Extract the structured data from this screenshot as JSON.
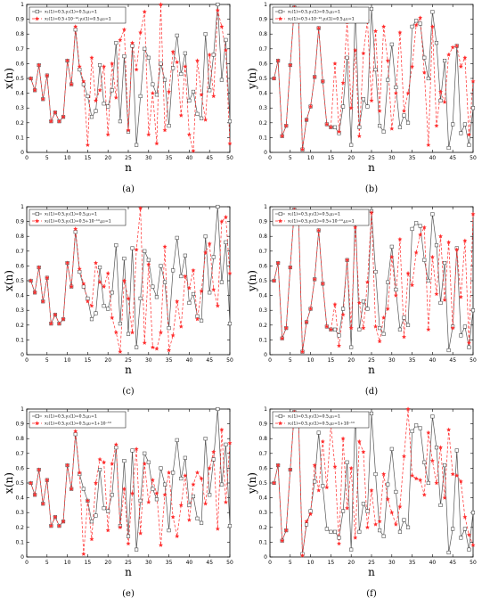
{
  "chart_data": [
    {
      "panel": "(a)",
      "type": "line",
      "xlabel": "n",
      "ylabel": "x(n)",
      "xlim": [
        0,
        50
      ],
      "ylim": [
        0,
        1
      ],
      "xticks": [
        "0",
        "5",
        "10",
        "15",
        "20",
        "25",
        "30",
        "35",
        "40",
        "45",
        "50"
      ],
      "yticks": [
        "0",
        "0.1",
        "0.2",
        "0.3",
        "0.4",
        "0.5",
        "0.6",
        "0.7",
        "0.8",
        "0.9",
        "1"
      ],
      "legend": [
        "x₁(1)=0.5,y₁(1)=0.5,μ₁=1",
        "x₂(1)=0.5+10⁻¹⁴,y₂(1)=0.5,μ₂=1"
      ],
      "x": [
        1,
        2,
        3,
        4,
        5,
        6,
        7,
        8,
        9,
        10,
        11,
        12,
        13,
        14,
        15,
        16,
        17,
        18,
        19,
        20,
        21,
        22,
        23,
        24,
        25,
        26,
        27,
        28,
        29,
        30,
        31,
        32,
        33,
        34,
        35,
        36,
        37,
        38,
        39,
        40,
        41,
        42,
        43,
        44,
        45,
        46,
        47,
        48,
        49,
        50
      ],
      "series": [
        {
          "values": [
            0.5,
            0.42,
            0.59,
            0.36,
            0.52,
            0.21,
            0.27,
            0.21,
            0.24,
            0.62,
            0.46,
            0.83,
            0.56,
            0.46,
            0.38,
            0.24,
            0.28,
            0.59,
            0.33,
            0.31,
            0.42,
            0.74,
            0.21,
            0.65,
            0.14,
            0.72,
            0.05,
            0.38,
            0.7,
            0.64,
            0.46,
            0.39,
            0.6,
            0.49,
            0.18,
            0.57,
            0.79,
            0.53,
            0.67,
            0.35,
            0.41,
            0.26,
            0.23,
            0.8,
            0.42,
            0.66,
            1.0,
            0.49,
            0.76,
            0.21
          ]
        },
        {
          "values": [
            0.5,
            0.42,
            0.59,
            0.36,
            0.52,
            0.21,
            0.27,
            0.21,
            0.24,
            0.62,
            0.46,
            0.85,
            0.58,
            0.48,
            0.05,
            0.64,
            0.35,
            0.42,
            0.58,
            0.12,
            0.6,
            0.37,
            0.76,
            0.83,
            0.15,
            0.74,
            0.56,
            0.81,
            0.95,
            0.12,
            0.4,
            0.06,
            1.0,
            0.15,
            0.41,
            0.68,
            0.61,
            0.25,
            0.58,
            0.12,
            0.01,
            0.62,
            0.39,
            0.22,
            0.66,
            0.38,
            0.96,
            0.85,
            0.69,
            0.06
          ]
        }
      ]
    },
    {
      "panel": "(b)",
      "type": "line",
      "xlabel": "n",
      "ylabel": "y(n)",
      "xlim": [
        0,
        50
      ],
      "ylim": [
        0,
        1
      ],
      "xticks": [
        "0",
        "5",
        "10",
        "15",
        "20",
        "25",
        "30",
        "35",
        "40",
        "45",
        "50"
      ],
      "yticks": [
        "0",
        "0.1",
        "0.2",
        "0.3",
        "0.4",
        "0.5",
        "0.6",
        "0.7",
        "0.8",
        "0.9",
        "1"
      ],
      "legend": [
        "x₁(1)=0.5,y₁(1)=0.5,μ₁=1",
        "x₂(1)=0.5+10⁻¹⁴,y₂(1)=0.5,μ₂=1"
      ],
      "x": [
        1,
        2,
        3,
        4,
        5,
        6,
        7,
        8,
        9,
        10,
        11,
        12,
        13,
        14,
        15,
        16,
        17,
        18,
        19,
        20,
        21,
        22,
        23,
        24,
        25,
        26,
        27,
        28,
        29,
        30,
        31,
        32,
        33,
        34,
        35,
        36,
        37,
        38,
        39,
        40,
        41,
        42,
        43,
        44,
        45,
        46,
        47,
        48,
        49,
        50
      ],
      "series": [
        {
          "values": [
            0.5,
            0.62,
            0.11,
            0.18,
            0.59,
            0.98,
            0.97,
            0.02,
            0.22,
            0.31,
            0.51,
            0.84,
            0.48,
            0.19,
            0.17,
            0.17,
            0.13,
            0.31,
            0.64,
            0.05,
            0.97,
            0.17,
            0.36,
            0.31,
            0.97,
            0.56,
            0.18,
            0.14,
            0.49,
            0.73,
            0.44,
            0.17,
            0.25,
            0.2,
            0.85,
            0.89,
            0.87,
            0.64,
            0.5,
            0.95,
            0.74,
            0.35,
            0.62,
            0.03,
            0.19,
            0.72,
            0.13,
            0.19,
            0.05,
            0.3
          ]
        },
        {
          "values": [
            0.5,
            0.62,
            0.11,
            0.18,
            0.59,
            0.98,
            0.97,
            0.02,
            0.22,
            0.31,
            0.51,
            0.84,
            0.48,
            0.19,
            0.17,
            0.6,
            0.14,
            0.47,
            0.88,
            0.3,
            0.69,
            0.11,
            0.67,
            0.89,
            0.35,
            0.82,
            0.28,
            0.85,
            0.62,
            0.16,
            0.4,
            0.81,
            0.28,
            0.4,
            0.58,
            0.86,
            0.91,
            0.54,
            0.05,
            0.85,
            0.18,
            0.41,
            0.34,
            0.66,
            0.71,
            0.72,
            0.58,
            0.64,
            0.12,
            0.48
          ]
        }
      ]
    },
    {
      "panel": "(c)",
      "type": "line",
      "xlabel": "n",
      "ylabel": "x(n)",
      "xlim": [
        0,
        50
      ],
      "ylim": [
        0,
        1
      ],
      "xticks": [
        "0",
        "5",
        "10",
        "15",
        "20",
        "25",
        "30",
        "35",
        "40",
        "45",
        "50"
      ],
      "yticks": [
        "0",
        "0.1",
        "0.2",
        "0.3",
        "0.4",
        "0.5",
        "0.6",
        "0.7",
        "0.8",
        "0.9",
        "1"
      ],
      "legend": [
        "x₁(1)=0.5,y₁(1)=0.5,μ₁=1",
        "x₂(1)=0.5,y₂(1)=0.5+10⁻¹⁴,μ₂=1"
      ],
      "x": [
        1,
        2,
        3,
        4,
        5,
        6,
        7,
        8,
        9,
        10,
        11,
        12,
        13,
        14,
        15,
        16,
        17,
        18,
        19,
        20,
        21,
        22,
        23,
        24,
        25,
        26,
        27,
        28,
        29,
        30,
        31,
        32,
        33,
        34,
        35,
        36,
        37,
        38,
        39,
        40,
        41,
        42,
        43,
        44,
        45,
        46,
        47,
        48,
        49,
        50
      ],
      "series": [
        {
          "values": [
            0.5,
            0.42,
            0.59,
            0.36,
            0.52,
            0.21,
            0.27,
            0.21,
            0.24,
            0.62,
            0.46,
            0.83,
            0.56,
            0.46,
            0.38,
            0.24,
            0.28,
            0.59,
            0.33,
            0.31,
            0.42,
            0.74,
            0.21,
            0.65,
            0.14,
            0.72,
            0.05,
            0.38,
            0.7,
            0.64,
            0.46,
            0.39,
            0.6,
            0.49,
            0.18,
            0.57,
            0.79,
            0.53,
            0.67,
            0.35,
            0.41,
            0.26,
            0.23,
            0.8,
            0.42,
            0.66,
            1.0,
            0.49,
            0.76,
            0.21
          ]
        },
        {
          "values": [
            0.5,
            0.42,
            0.59,
            0.36,
            0.52,
            0.21,
            0.27,
            0.21,
            0.24,
            0.62,
            0.46,
            0.85,
            0.58,
            0.48,
            0.36,
            0.33,
            0.62,
            0.49,
            0.46,
            0.55,
            0.25,
            0.15,
            0.02,
            0.5,
            0.38,
            0.15,
            0.71,
            0.99,
            0.08,
            0.61,
            0.05,
            0.04,
            0.15,
            0.73,
            0.03,
            0.13,
            0.36,
            0.19,
            0.53,
            0.45,
            0.57,
            0.24,
            0.43,
            0.69,
            0.75,
            0.44,
            0.33,
            0.9,
            0.93,
            0.55
          ]
        }
      ]
    },
    {
      "panel": "(d)",
      "type": "line",
      "xlabel": "n",
      "ylabel": "y(n)",
      "xlim": [
        0,
        50
      ],
      "ylim": [
        0,
        1
      ],
      "xticks": [
        "0",
        "5",
        "10",
        "15",
        "20",
        "25",
        "30",
        "35",
        "40",
        "45",
        "50"
      ],
      "yticks": [
        "0",
        "0.1",
        "0.2",
        "0.3",
        "0.4",
        "0.5",
        "0.6",
        "0.7",
        "0.8",
        "0.9",
        "1"
      ],
      "legend": [
        "x₁(1)=0.5,y₁(1)=0.5,μ₁=1",
        "x₂(1)=0.5,y₂(1)=0.5+10⁻¹⁴,μ₂=1"
      ],
      "x": [
        1,
        2,
        3,
        4,
        5,
        6,
        7,
        8,
        9,
        10,
        11,
        12,
        13,
        14,
        15,
        16,
        17,
        18,
        19,
        20,
        21,
        22,
        23,
        24,
        25,
        26,
        27,
        28,
        29,
        30,
        31,
        32,
        33,
        34,
        35,
        36,
        37,
        38,
        39,
        40,
        41,
        42,
        43,
        44,
        45,
        46,
        47,
        48,
        49,
        50
      ],
      "series": [
        {
          "values": [
            0.5,
            0.62,
            0.11,
            0.18,
            0.59,
            0.98,
            0.97,
            0.02,
            0.22,
            0.31,
            0.51,
            0.84,
            0.48,
            0.19,
            0.17,
            0.17,
            0.13,
            0.31,
            0.64,
            0.05,
            0.97,
            0.17,
            0.36,
            0.31,
            0.97,
            0.56,
            0.18,
            0.14,
            0.49,
            0.73,
            0.44,
            0.17,
            0.25,
            0.2,
            0.85,
            0.89,
            0.87,
            0.64,
            0.5,
            0.95,
            0.74,
            0.35,
            0.62,
            0.03,
            0.19,
            0.72,
            0.13,
            0.19,
            0.05,
            0.3
          ]
        },
        {
          "values": [
            0.5,
            0.62,
            0.11,
            0.18,
            0.59,
            0.98,
            0.97,
            0.02,
            0.22,
            0.31,
            0.51,
            0.84,
            0.48,
            0.19,
            0.17,
            0.34,
            0.06,
            0.27,
            0.64,
            0.18,
            0.86,
            0.35,
            0.18,
            0.49,
            0.96,
            0.19,
            0.09,
            0.25,
            0.31,
            0.66,
            0.4,
            0.78,
            0.12,
            0.55,
            0.47,
            0.69,
            0.81,
            0.86,
            0.17,
            0.66,
            0.41,
            0.8,
            0.37,
            0.76,
            0.18,
            0.71,
            0.39,
            0.77,
            0.08,
            0.95
          ]
        }
      ]
    },
    {
      "panel": "(e)",
      "type": "line",
      "xlabel": "n",
      "ylabel": "x(n)",
      "xlim": [
        0,
        50
      ],
      "ylim": [
        0,
        1
      ],
      "xticks": [
        "0",
        "5",
        "10",
        "15",
        "20",
        "25",
        "30",
        "35",
        "40",
        "45",
        "50"
      ],
      "yticks": [
        "0",
        "0.1",
        "0.2",
        "0.3",
        "0.4",
        "0.5",
        "0.6",
        "0.7",
        "0.8",
        "0.9",
        "1"
      ],
      "legend": [
        "x₁(1)=0.5,y₁(1)=0.5,μ₁=1",
        "x₂(1)=0.5,y₂(1)=0.5,μ₂=1+10⁻¹⁴"
      ],
      "x": [
        1,
        2,
        3,
        4,
        5,
        6,
        7,
        8,
        9,
        10,
        11,
        12,
        13,
        14,
        15,
        16,
        17,
        18,
        19,
        20,
        21,
        22,
        23,
        24,
        25,
        26,
        27,
        28,
        29,
        30,
        31,
        32,
        33,
        34,
        35,
        36,
        37,
        38,
        39,
        40,
        41,
        42,
        43,
        44,
        45,
        46,
        47,
        48,
        49,
        50
      ],
      "series": [
        {
          "values": [
            0.5,
            0.42,
            0.59,
            0.36,
            0.52,
            0.21,
            0.27,
            0.21,
            0.24,
            0.62,
            0.46,
            0.83,
            0.56,
            0.46,
            0.38,
            0.24,
            0.28,
            0.59,
            0.33,
            0.31,
            0.42,
            0.74,
            0.21,
            0.65,
            0.14,
            0.72,
            0.05,
            0.38,
            0.7,
            0.64,
            0.46,
            0.39,
            0.6,
            0.49,
            0.18,
            0.57,
            0.79,
            0.53,
            0.67,
            0.35,
            0.41,
            0.26,
            0.23,
            0.8,
            0.42,
            0.66,
            1.0,
            0.49,
            0.76,
            0.21
          ]
        },
        {
          "values": [
            0.5,
            0.42,
            0.59,
            0.36,
            0.52,
            0.21,
            0.27,
            0.21,
            0.24,
            0.62,
            0.46,
            0.85,
            0.57,
            0.02,
            0.38,
            0.12,
            0.5,
            0.66,
            0.64,
            0.18,
            0.63,
            0.76,
            0.2,
            0.46,
            0.09,
            0.43,
            0.73,
            0.16,
            0.63,
            0.37,
            0.52,
            0.43,
            0.08,
            0.42,
            0.57,
            0.27,
            0.14,
            0.35,
            0.55,
            0.25,
            0.49,
            0.57,
            0.53,
            0.36,
            0.6,
            0.71,
            0.19,
            0.86,
            0.37,
            0.77
          ]
        }
      ]
    },
    {
      "panel": "(f)",
      "type": "line",
      "xlabel": "n",
      "ylabel": "y(n)",
      "xlim": [
        0,
        50
      ],
      "ylim": [
        0,
        1
      ],
      "xticks": [
        "0",
        "5",
        "10",
        "15",
        "20",
        "25",
        "30",
        "35",
        "40",
        "45",
        "50"
      ],
      "yticks": [
        "0",
        "0.1",
        "0.2",
        "0.3",
        "0.4",
        "0.5",
        "0.6",
        "0.7",
        "0.8",
        "0.9",
        "1"
      ],
      "legend": [
        "x₁(1)=0.5,y₁(1)=0.5,μ₁=1",
        "x₂(1)=0.5,y₂(1)=0.5,μ₂=1+10⁻¹⁴"
      ],
      "x": [
        1,
        2,
        3,
        4,
        5,
        6,
        7,
        8,
        9,
        10,
        11,
        12,
        13,
        14,
        15,
        16,
        17,
        18,
        19,
        20,
        21,
        22,
        23,
        24,
        25,
        26,
        27,
        28,
        29,
        30,
        31,
        32,
        33,
        34,
        35,
        36,
        37,
        38,
        39,
        40,
        41,
        42,
        43,
        44,
        45,
        46,
        47,
        48,
        49,
        50
      ],
      "series": [
        {
          "values": [
            0.5,
            0.62,
            0.11,
            0.18,
            0.59,
            0.98,
            0.97,
            0.02,
            0.22,
            0.31,
            0.51,
            0.84,
            0.48,
            0.19,
            0.17,
            0.17,
            0.13,
            0.31,
            0.64,
            0.05,
            0.97,
            0.17,
            0.36,
            0.31,
            0.97,
            0.56,
            0.18,
            0.14,
            0.49,
            0.73,
            0.44,
            0.17,
            0.25,
            0.2,
            0.85,
            0.89,
            0.87,
            0.64,
            0.5,
            0.95,
            0.74,
            0.35,
            0.62,
            0.03,
            0.19,
            0.72,
            0.13,
            0.19,
            0.05,
            0.3
          ]
        },
        {
          "values": [
            0.5,
            0.62,
            0.11,
            0.18,
            0.59,
            0.98,
            0.97,
            0.01,
            0.24,
            0.29,
            0.62,
            0.45,
            0.78,
            0.47,
            0.89,
            0.61,
            0.09,
            0.8,
            0.33,
            0.6,
            0.13,
            0.78,
            0.71,
            0.2,
            0.45,
            0.22,
            0.24,
            0.56,
            0.39,
            0.3,
            0.22,
            0.34,
            0.68,
            1.0,
            0.55,
            0.53,
            0.52,
            0.42,
            0.84,
            0.65,
            0.5,
            0.74,
            0.4,
            0.86,
            0.56,
            0.55,
            0.51,
            0.27,
            0.15,
            0.08
          ]
        }
      ]
    }
  ]
}
